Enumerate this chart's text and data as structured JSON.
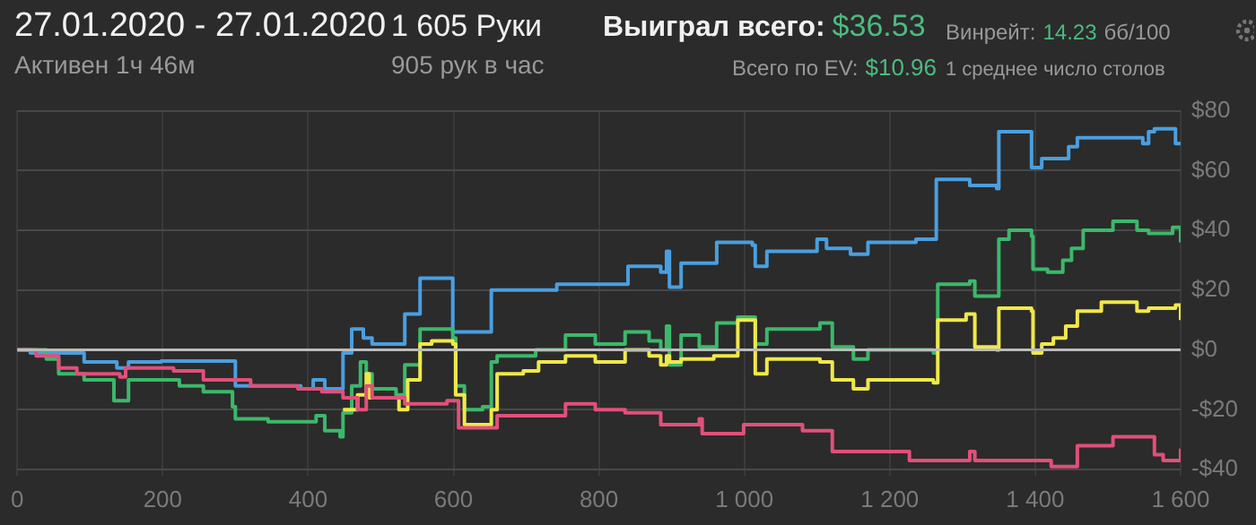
{
  "chart_data": {
    "type": "step",
    "title": "27.01.2020 - 27.01.2020",
    "annotations": [
      "Активен 1ч 46м",
      "1 605 Руки",
      "905 рук в час",
      "Выиграл всего:",
      "$36.53",
      "Всего по EV:",
      "$10.96",
      "Винрейт:",
      "14.23",
      "бб/100",
      "1 среднее число столов"
    ],
    "xlim": [
      0,
      1600
    ],
    "xticks": [
      0,
      200,
      400,
      600,
      800,
      {
        "value": 1000,
        "label": "1 000"
      },
      {
        "value": 1200,
        "label": "1 200"
      },
      {
        "value": 1400,
        "label": "1 400"
      },
      {
        "value": 1600,
        "label": "1 600"
      }
    ],
    "ylim": [
      -42,
      80
    ],
    "yticks": [
      {
        "value": -40,
        "label": "-$40"
      },
      {
        "value": -20,
        "label": "-$20"
      },
      {
        "value": 0,
        "label": "$0"
      },
      {
        "value": 20,
        "label": "$20"
      },
      {
        "value": 40,
        "label": "$40"
      },
      {
        "value": 60,
        "label": "$60"
      },
      {
        "value": 80,
        "label": "$80"
      }
    ],
    "grid": true,
    "marker": "none",
    "ref_lines": [
      {
        "axis": "y",
        "value": 0,
        "color": "#bbbbbb"
      }
    ],
    "series": [
      {
        "color": "#e0507a",
        "x": [
          0,
          26,
          57,
          82,
          141,
          149,
          215,
          256,
          321,
          386,
          419,
          448,
          468,
          480,
          488,
          533,
          591,
          607,
          660,
          713,
          754,
          795,
          836,
          885,
          938,
          942,
          999,
          1080,
          1121,
          1227,
          1310,
          1317,
          1409,
          1422,
          1458,
          1507,
          1564,
          1576,
          1600
        ],
        "values": [
          0,
          -2,
          -6,
          -8,
          -9,
          -6,
          -7,
          -10,
          -12,
          -13,
          -14,
          -16,
          -20,
          -12,
          -16,
          -18,
          -17,
          -26,
          -22,
          -22,
          -18,
          -20,
          -21,
          -25,
          -23,
          -28,
          -25,
          -27,
          -34,
          -37,
          -34,
          -37,
          -37,
          -39,
          -32,
          -29,
          -35,
          -37,
          -33
        ]
      },
      {
        "color": "#f0e84a",
        "x": [
          448,
          468,
          480,
          484,
          525,
          537,
          554,
          570,
          599,
          603,
          615,
          652,
          660,
          696,
          717,
          754,
          795,
          836,
          869,
          885,
          893,
          897,
          913,
          958,
          991,
          1011,
          1015,
          1031,
          1104,
          1121,
          1150,
          1170,
          1260,
          1266,
          1305,
          1317,
          1347,
          1350,
          1395,
          1397,
          1409,
          1425,
          1442,
          1458,
          1491,
          1540,
          1556,
          1593,
          1600
        ],
        "values": [
          -20,
          -15,
          -8,
          -16,
          -20,
          -10,
          2,
          3,
          2,
          -15,
          -25,
          -20,
          -8,
          -7,
          -4,
          -2,
          -4,
          0,
          -2,
          -5,
          -2,
          -4,
          -3,
          -2,
          10,
          10,
          -8,
          -3,
          -4,
          -10,
          -13,
          -10,
          -11,
          10,
          12,
          1,
          0,
          14,
          13,
          -1,
          2,
          4,
          8,
          13,
          16,
          13,
          14,
          15,
          10
        ]
      },
      {
        "color": "#3cb86a",
        "x": [
          0,
          40,
          57,
          92,
          133,
          153,
          223,
          256,
          296,
          300,
          345,
          403,
          411,
          423,
          444,
          448,
          460,
          472,
          480,
          488,
          521,
          533,
          554,
          599,
          603,
          615,
          640,
          652,
          660,
          713,
          754,
          795,
          836,
          869,
          885,
          893,
          897,
          913,
          938,
          962,
          991,
          1011,
          1015,
          1031,
          1104,
          1121,
          1150,
          1170,
          1244,
          1260,
          1266,
          1310,
          1317,
          1347,
          1350,
          1364,
          1395,
          1397,
          1417,
          1438,
          1450,
          1466,
          1507,
          1540,
          1556,
          1589,
          1600
        ],
        "values": [
          0,
          -3,
          -8,
          -10,
          -17,
          -10,
          -12,
          -14,
          -19,
          -23,
          -24,
          -24,
          -22,
          -27,
          -29,
          -21,
          -12,
          -4,
          -8,
          -13,
          -15,
          -5,
          7,
          4,
          -12,
          -20,
          -19,
          -4,
          -2,
          0,
          5,
          2,
          6,
          3,
          0,
          8,
          -5,
          5,
          1,
          9,
          11,
          11,
          2,
          7,
          9,
          1,
          -3,
          0,
          0,
          -1,
          22,
          23,
          18,
          18,
          37,
          40,
          38,
          27,
          26,
          30,
          34,
          40,
          43,
          40,
          39,
          41,
          36
        ]
      },
      {
        "color": "#4a9fe0",
        "x": [
          0,
          18,
          92,
          137,
          153,
          198,
          268,
          300,
          390,
          407,
          423,
          448,
          460,
          476,
          488,
          533,
          554,
          599,
          652,
          742,
          836,
          840,
          885,
          893,
          897,
          913,
          962,
          1011,
          1015,
          1031,
          1100,
          1113,
          1146,
          1170,
          1236,
          1264,
          1310,
          1347,
          1350,
          1395,
          1409,
          1446,
          1458,
          1540,
          1548,
          1556,
          1564,
          1593,
          1600
        ],
        "values": [
          0,
          -1,
          -4,
          -6,
          -4,
          -3.7,
          -3.7,
          -12,
          -13,
          -10,
          -13,
          -1,
          7,
          4,
          2,
          12,
          24,
          6,
          20,
          22,
          22,
          28,
          26,
          33,
          21,
          29,
          36,
          35,
          28,
          33,
          37,
          34,
          32,
          36,
          37,
          57,
          55,
          54,
          73,
          61,
          64,
          68,
          71,
          71,
          69,
          73,
          74,
          69,
          69
        ]
      }
    ]
  }
}
